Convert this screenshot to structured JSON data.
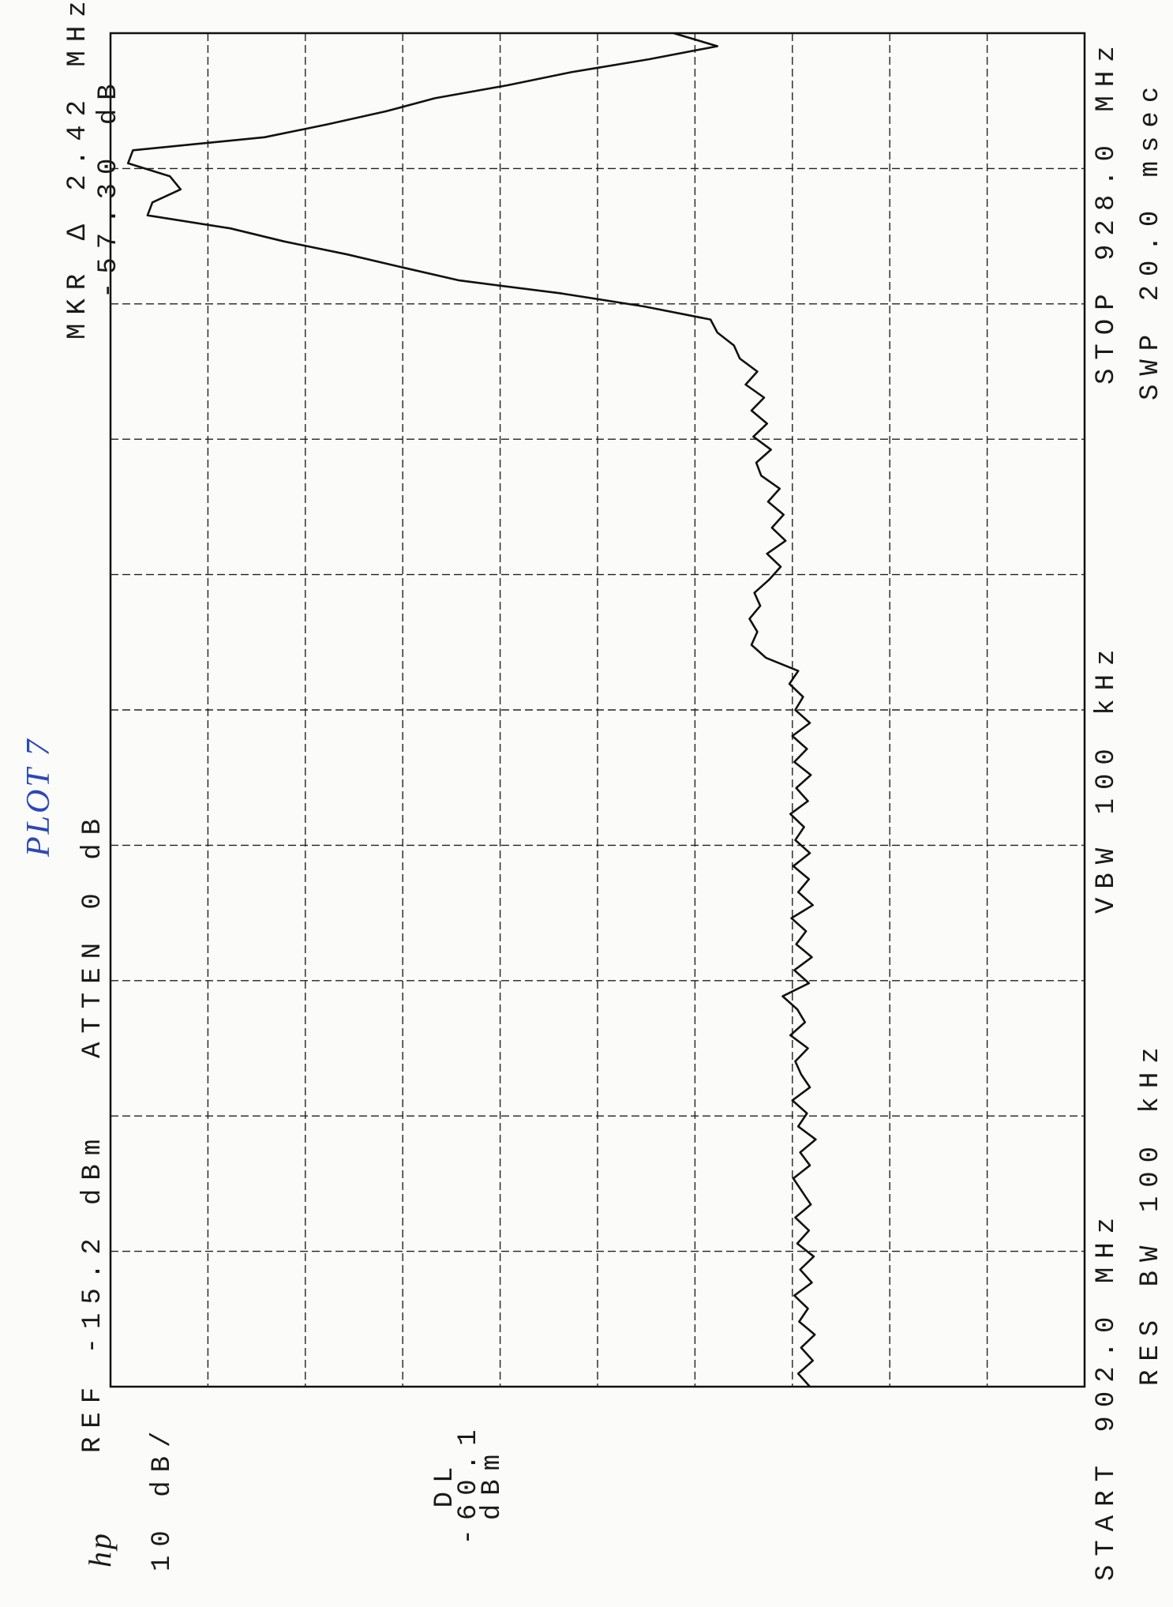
{
  "chart_data": {
    "type": "line",
    "annotations": [
      "REF -15.2 dBm",
      "ATTEN 0 dB",
      "MKR Δ 2.42 MHz",
      "-57.30 dB",
      "10 dB/",
      "DL",
      "-60.1",
      "dBm",
      "START 902.0 MHz",
      "RES BW 100 kHz",
      "VBW 100 kHz",
      "STOP 928.0 MHz",
      "SWP 20.0 msec",
      "PLOT 7",
      "hp"
    ],
    "x": [
      902,
      902.25,
      902.5,
      902.75,
      903,
      903.25,
      903.5,
      903.75,
      904,
      904.25,
      904.5,
      904.75,
      905,
      905.25,
      905.5,
      905.75,
      906,
      906.25,
      906.5,
      906.75,
      907,
      907.25,
      907.5,
      907.75,
      908,
      908.25,
      908.5,
      908.75,
      909,
      909.25,
      909.5,
      909.75,
      910,
      910.25,
      910.5,
      910.75,
      911,
      911.25,
      911.5,
      911.75,
      912,
      912.25,
      912.5,
      912.75,
      913,
      913.25,
      913.5,
      913.75,
      914,
      914.25,
      914.5,
      914.75,
      915,
      915.25,
      915.5,
      915.75,
      916,
      916.25,
      916.5,
      916.75,
      917,
      917.25,
      917.5,
      917.75,
      918,
      918.25,
      918.5,
      918.75,
      919,
      919.25,
      919.5,
      919.75,
      920,
      920.25,
      920.5,
      920.75,
      921,
      921.25,
      921.5,
      921.75,
      922,
      922.25,
      922.5,
      922.75,
      923,
      923.25,
      923.5,
      923.75,
      924,
      924.25,
      924.5,
      924.75,
      925,
      925.25,
      925.5,
      925.75,
      926,
      926.25,
      926.5,
      926.75,
      927,
      927.25,
      927.5,
      927.75,
      928
    ],
    "values": [
      -87.0,
      -85.8,
      -87.3,
      -86.1,
      -87.5,
      -85.9,
      -86.8,
      -85.4,
      -87.2,
      -86.0,
      -87.4,
      -85.7,
      -86.9,
      -85.5,
      -87.1,
      -86.2,
      -85.3,
      -87.0,
      -86.0,
      -87.6,
      -85.8,
      -86.7,
      -85.2,
      -87.0,
      -86.1,
      -85.5,
      -86.8,
      -85.0,
      -86.5,
      -85.7,
      -84.2,
      -86.9,
      -85.4,
      -87.2,
      -85.6,
      -86.6,
      -85.1,
      -87.3,
      -85.8,
      -86.9,
      -85.3,
      -87.0,
      -85.5,
      -86.4,
      -85.0,
      -86.8,
      -85.6,
      -87.1,
      -85.4,
      -86.7,
      -85.2,
      -87.0,
      -85.5,
      -86.3,
      -84.9,
      -85.8,
      -82.5,
      -81.0,
      -81.6,
      -80.8,
      -81.9,
      -81.3,
      -82.8,
      -84.0,
      -82.6,
      -84.5,
      -83.1,
      -84.3,
      -82.7,
      -83.9,
      -82.0,
      -81.5,
      -83.0,
      -81.2,
      -82.6,
      -81.0,
      -82.3,
      -80.4,
      -81.6,
      -79.8,
      -79.2,
      -77.5,
      -76.8,
      -70.0,
      -61.5,
      -51.0,
      -45.2,
      -39.5,
      -33.0,
      -27.5,
      -19.0,
      -19.5,
      -22.4,
      -21.3,
      -17.0,
      -17.5,
      -31.0,
      -37.5,
      -43.5,
      -48.5,
      -56.0,
      -62.5,
      -70.5,
      -77.5,
      -73.0
    ],
    "color": "#111111",
    "xlim": [
      902,
      928
    ],
    "ylim": [
      -115.2,
      -15.2
    ],
    "xticks": [
      902,
      904.6,
      907.2,
      909.8,
      912.4,
      915,
      917.6,
      920.2,
      922.8,
      925.4,
      928
    ],
    "yticks": [
      -115.2,
      -105.2,
      -95.2,
      -85.2,
      -75.2,
      -65.2,
      -55.2,
      -45.2,
      -35.2,
      -25.2,
      -15.2
    ],
    "grid": true
  }
}
